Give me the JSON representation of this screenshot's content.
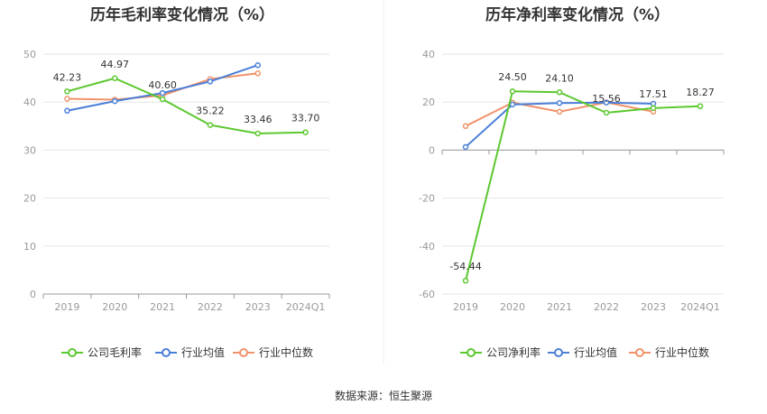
{
  "colors": {
    "company": "#5cc82f",
    "average": "#4a7fd8",
    "median": "#f0926a",
    "grid": "#e6e6e6",
    "axis": "#999999"
  },
  "source": "数据来源：恒生聚源",
  "chart_data": [
    {
      "type": "line",
      "title": "历年毛利率变化情况（%）",
      "categories": [
        "2019",
        "2020",
        "2021",
        "2022",
        "2023",
        "2024Q1"
      ],
      "ylim": [
        0,
        50
      ],
      "yticks": [
        "0",
        "10",
        "20",
        "30",
        "40",
        "50"
      ],
      "grid": true,
      "legend_position": "bottom",
      "series": [
        {
          "key": "company",
          "name": "公司毛利率",
          "values": [
            42.23,
            44.97,
            40.6,
            35.22,
            33.46,
            33.7
          ],
          "labels": [
            "42.23",
            "44.97",
            "40.60",
            "35.22",
            "33.46",
            "33.70"
          ]
        },
        {
          "key": "average",
          "name": "行业均值",
          "values": [
            38.2,
            40.2,
            41.9,
            44.3,
            47.7,
            null
          ]
        },
        {
          "key": "median",
          "name": "行业中位数",
          "values": [
            40.7,
            40.5,
            41.4,
            44.8,
            46.0,
            null
          ]
        }
      ]
    },
    {
      "type": "line",
      "title": "历年净利率变化情况（%）",
      "categories": [
        "2019",
        "2020",
        "2021",
        "2022",
        "2023",
        "2024Q1"
      ],
      "ylim": [
        -60,
        40
      ],
      "yticks": [
        "-60",
        "-40",
        "-20",
        "0",
        "20",
        "40"
      ],
      "grid": true,
      "legend_position": "bottom",
      "series": [
        {
          "key": "company",
          "name": "公司净利率",
          "values": [
            -54.44,
            24.5,
            24.1,
            15.56,
            17.51,
            18.27
          ],
          "labels": [
            "-54.44",
            "24.50",
            "24.10",
            "15.56",
            "17.51",
            "18.27"
          ]
        },
        {
          "key": "average",
          "name": "行业均值",
          "values": [
            1.3,
            19.0,
            19.6,
            19.8,
            19.3,
            null
          ]
        },
        {
          "key": "median",
          "name": "行业中位数",
          "values": [
            10.0,
            19.8,
            16.0,
            19.9,
            16.0,
            null
          ]
        }
      ]
    }
  ]
}
